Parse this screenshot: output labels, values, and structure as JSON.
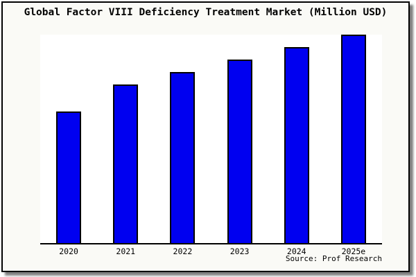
{
  "header": {
    "title": "Global Factor VIII Deficiency Treatment Market (Million USD)"
  },
  "footer": {
    "source": "Source: Prof Research"
  },
  "colors": {
    "bar_fill": "#0000f0",
    "bar_border": "#000000",
    "canvas_bg": "#fafaf6",
    "plot_bg": "#ffffff",
    "frame_border": "#000000"
  },
  "chart_data": {
    "type": "bar",
    "title": "Global Factor VIII Deficiency Treatment Market (Million USD)",
    "categories": [
      "2020",
      "2021",
      "2022",
      "2023",
      "2024",
      "2025e"
    ],
    "values": [
      63,
      76,
      82,
      88,
      94,
      100
    ],
    "xlabel": "",
    "ylabel": "",
    "ylim": [
      0,
      100
    ],
    "grid": false,
    "legend": false
  }
}
